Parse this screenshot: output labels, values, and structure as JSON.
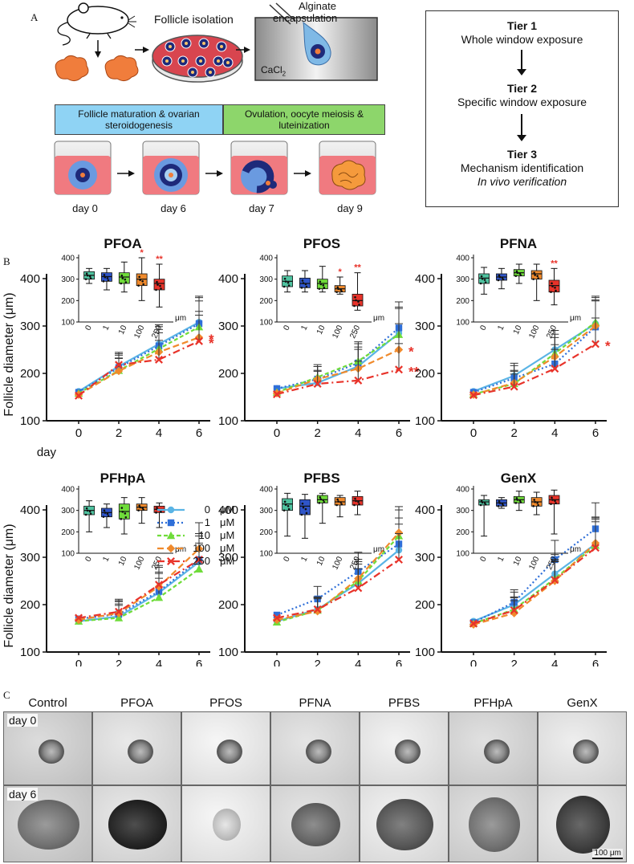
{
  "panels": {
    "a": "A",
    "b": "B",
    "c": "C"
  },
  "panel_a": {
    "follicle_isolation": "Follicle isolation",
    "alginate_line1": "Alginate",
    "alginate_line2": "encapsulation",
    "cacl2": "CaCl",
    "cacl2_sub": "2",
    "phase1": "Follicle maturation & ovarian steroidogenesis",
    "phase2": "Ovulation, oocyte meiosis & luteinization",
    "days": [
      "day 0",
      "day 6",
      "day 7",
      "day 9"
    ],
    "colors": {
      "phase1": "#8fd3f4",
      "phase2": "#8dd66b",
      "medium": "#f08080",
      "ovary": "#f07d3c",
      "follicle_dark": "#1e2a7a"
    }
  },
  "tiers": [
    {
      "title": "Tier 1",
      "line1": "Whole window exposure",
      "line2": ""
    },
    {
      "title": "Tier 2",
      "line1": "Specific window exposure",
      "line2": ""
    },
    {
      "title": "Tier 3",
      "line1": "Mechanism identification",
      "line2": "In vivo verification"
    }
  ],
  "legend": {
    "entries": [
      {
        "dose": "0",
        "unit": "μM"
      },
      {
        "dose": "1",
        "unit": "μM"
      },
      {
        "dose": "10",
        "unit": "μM"
      },
      {
        "dose": "100",
        "unit": "μM"
      },
      {
        "dose": "250",
        "unit": "μM"
      }
    ]
  },
  "series_colors": [
    "#5ab4e5",
    "#2f6fd8",
    "#6fdc3a",
    "#f08a2c",
    "#e8332a"
  ],
  "chart_data": [
    {
      "type": "line",
      "title": "PFOA",
      "ylabel": "Follicle diameter (μm)",
      "xlabel": "day",
      "x": [
        0,
        2,
        4,
        6
      ],
      "ylim": [
        100,
        400
      ],
      "yticks": [
        100,
        200,
        300,
        400
      ],
      "series": [
        {
          "name": "0 μM",
          "values": [
            162,
            215,
            262,
            308
          ]
        },
        {
          "name": "1 μM",
          "values": [
            160,
            212,
            258,
            305
          ]
        },
        {
          "name": "10 μM",
          "values": [
            158,
            206,
            252,
            298
          ]
        },
        {
          "name": "100 μM",
          "values": [
            155,
            205,
            245,
            276
          ]
        },
        {
          "name": "250 μM",
          "values": [
            153,
            218,
            229,
            268
          ]
        }
      ],
      "annotations": [
        "*",
        "*"
      ],
      "inset": {
        "type": "box",
        "categories": [
          "0",
          "1",
          "10",
          "100",
          "250"
        ],
        "unit": "μm",
        "yticks": [
          100,
          200,
          300,
          400
        ],
        "ylim": [
          100,
          400
        ],
        "medians": [
          318,
          312,
          310,
          300,
          280
        ],
        "q1": [
          300,
          290,
          280,
          270,
          250
        ],
        "q3": [
          335,
          330,
          330,
          325,
          300
        ],
        "min": [
          280,
          250,
          240,
          200,
          170
        ],
        "max": [
          350,
          350,
          380,
          400,
          370
        ],
        "stars": [
          "",
          "",
          "",
          "*",
          "**"
        ]
      }
    },
    {
      "type": "line",
      "title": "PFOS",
      "x": [
        0,
        2,
        4,
        6
      ],
      "ylim": [
        100,
        400
      ],
      "series": [
        {
          "name": "0 μM",
          "values": [
            168,
            180,
            215,
            285
          ]
        },
        {
          "name": "1 μM",
          "values": [
            168,
            188,
            222,
            296
          ]
        },
        {
          "name": "10 μM",
          "values": [
            160,
            192,
            226,
            282
          ]
        },
        {
          "name": "100 μM",
          "values": [
            158,
            188,
            210,
            250
          ]
        },
        {
          "name": "250 μM",
          "values": [
            156,
            178,
            185,
            208
          ]
        }
      ],
      "annotations": [
        "*",
        "**"
      ],
      "inset": {
        "type": "box",
        "categories": [
          "0",
          "1",
          "10",
          "100",
          "250"
        ],
        "unit": "μm",
        "yticks": [
          100,
          200,
          300,
          400
        ],
        "ylim": [
          100,
          400
        ],
        "medians": [
          290,
          280,
          280,
          255,
          200
        ],
        "q1": [
          265,
          260,
          255,
          240,
          175
        ],
        "q3": [
          315,
          305,
          300,
          270,
          230
        ],
        "min": [
          240,
          240,
          240,
          230,
          155
        ],
        "max": [
          340,
          340,
          360,
          310,
          330
        ],
        "stars": [
          "",
          "",
          "",
          "*",
          "**"
        ]
      }
    },
    {
      "type": "line",
      "title": "PFNA",
      "x": [
        0,
        2,
        4,
        6
      ],
      "ylim": [
        100,
        400
      ],
      "series": [
        {
          "name": "0 μM",
          "values": [
            162,
            195,
            250,
            305
          ]
        },
        {
          "name": "1 μM",
          "values": [
            160,
            190,
            220,
            298
          ]
        },
        {
          "name": "10 μM",
          "values": [
            156,
            178,
            242,
            308
          ]
        },
        {
          "name": "100 μM",
          "values": [
            155,
            180,
            235,
            300
          ]
        },
        {
          "name": "250 μM",
          "values": [
            154,
            172,
            210,
            262
          ]
        }
      ],
      "annotations": [
        "*"
      ],
      "inset": {
        "type": "box",
        "categories": [
          "0",
          "1",
          "10",
          "100",
          "250"
        ],
        "unit": "μm",
        "yticks": [
          100,
          200,
          300,
          400
        ],
        "ylim": [
          100,
          400
        ],
        "medians": [
          305,
          310,
          330,
          325,
          270
        ],
        "q1": [
          280,
          295,
          315,
          300,
          240
        ],
        "q3": [
          325,
          325,
          345,
          340,
          295
        ],
        "min": [
          230,
          255,
          280,
          200,
          180
        ],
        "max": [
          355,
          350,
          370,
          370,
          350
        ],
        "stars": [
          "",
          "",
          "",
          "",
          "**"
        ]
      }
    },
    {
      "type": "line",
      "title": "PFHpA",
      "x": [
        0,
        2,
        4,
        6
      ],
      "ylim": [
        100,
        400
      ],
      "series": [
        {
          "name": "0 μM",
          "values": [
            165,
            175,
            225,
            290
          ]
        },
        {
          "name": "1 μM",
          "values": [
            170,
            180,
            228,
            295
          ]
        },
        {
          "name": "10 μM",
          "values": [
            165,
            172,
            215,
            275
          ]
        },
        {
          "name": "100 μM",
          "values": [
            168,
            182,
            238,
            318
          ]
        },
        {
          "name": "250 μM",
          "values": [
            172,
            185,
            242,
            295
          ]
        }
      ],
      "annotations": [],
      "inset": {
        "type": "box",
        "categories": [
          "0",
          "1",
          "10",
          "100",
          "250"
        ],
        "unit": "μm",
        "yticks": [
          100,
          200,
          300,
          400
        ],
        "ylim": [
          100,
          400
        ],
        "medians": [
          300,
          290,
          295,
          315,
          305
        ],
        "q1": [
          280,
          270,
          260,
          300,
          290
        ],
        "q3": [
          320,
          310,
          330,
          330,
          320
        ],
        "min": [
          200,
          220,
          190,
          240,
          220
        ],
        "max": [
          345,
          330,
          360,
          360,
          335
        ],
        "stars": [
          "",
          "",
          "",
          "",
          ""
        ]
      }
    },
    {
      "type": "line",
      "title": "PFBS",
      "x": [
        0,
        2,
        4,
        6
      ],
      "ylim": [
        100,
        400
      ],
      "series": [
        {
          "name": "0 μM",
          "values": [
            165,
            190,
            245,
            315
          ]
        },
        {
          "name": "1 μM",
          "values": [
            178,
            212,
            270,
            328
          ]
        },
        {
          "name": "10 μM",
          "values": [
            163,
            188,
            250,
            345
          ]
        },
        {
          "name": "100 μM",
          "values": [
            168,
            186,
            255,
            352
          ]
        },
        {
          "name": "250 μM",
          "values": [
            172,
            190,
            235,
            295
          ]
        }
      ],
      "annotations": [],
      "inset": {
        "type": "box",
        "categories": [
          "0",
          "1",
          "10",
          "100",
          "250"
        ],
        "unit": "μm",
        "yticks": [
          100,
          200,
          300,
          400
        ],
        "ylim": [
          100,
          400
        ],
        "medians": [
          330,
          320,
          350,
          340,
          345
        ],
        "q1": [
          300,
          280,
          335,
          325,
          325
        ],
        "q3": [
          355,
          350,
          370,
          360,
          365
        ],
        "min": [
          180,
          170,
          240,
          270,
          280
        ],
        "max": [
          380,
          375,
          380,
          370,
          390
        ],
        "stars": [
          "",
          "",
          "",
          "",
          ""
        ]
      }
    },
    {
      "type": "line",
      "title": "GenX",
      "x": [
        0,
        2,
        4,
        6
      ],
      "ylim": [
        100,
        400
      ],
      "series": [
        {
          "name": "0 μM",
          "values": [
            165,
            200,
            265,
            328
          ]
        },
        {
          "name": "1 μM",
          "values": [
            162,
            205,
            295,
            360
          ]
        },
        {
          "name": "10 μM",
          "values": [
            160,
            190,
            255,
            325
          ]
        },
        {
          "name": "100 μM",
          "values": [
            158,
            182,
            250,
            330
          ]
        },
        {
          "name": "250 μM",
          "values": [
            160,
            188,
            252,
            320
          ]
        }
      ],
      "annotations": [],
      "inset": {
        "type": "box",
        "categories": [
          "0",
          "1",
          "10",
          "100",
          "250"
        ],
        "unit": "μm",
        "yticks": [
          100,
          200,
          300,
          400
        ],
        "ylim": [
          100,
          400
        ],
        "medians": [
          340,
          335,
          350,
          340,
          350
        ],
        "q1": [
          325,
          320,
          335,
          320,
          330
        ],
        "q3": [
          350,
          350,
          365,
          360,
          370
        ],
        "min": [
          180,
          310,
          300,
          280,
          190
        ],
        "max": [
          370,
          360,
          390,
          385,
          395
        ],
        "stars": [
          "",
          "",
          "",
          "",
          ""
        ]
      }
    }
  ],
  "panel_c": {
    "columns": [
      "Control",
      "PFOA",
      "PFOS",
      "PFNA",
      "PFBS",
      "PFHpA",
      "GenX"
    ],
    "rows": [
      "day 0",
      "day 6"
    ],
    "scale_bar": "100 μm"
  }
}
